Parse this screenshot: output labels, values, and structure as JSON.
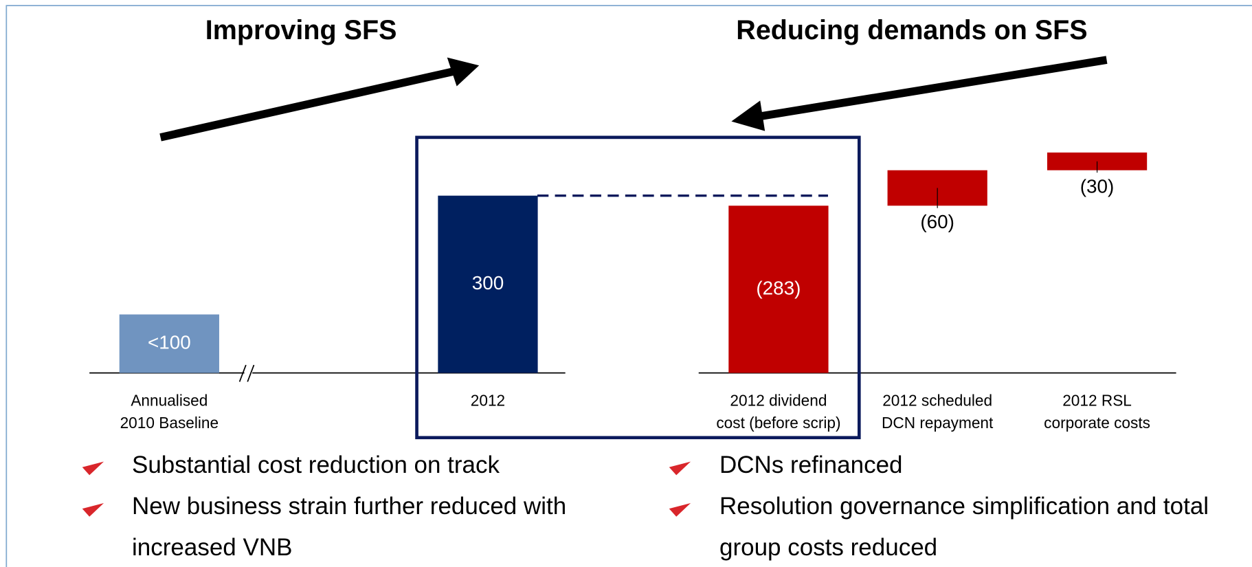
{
  "chart_data": {
    "type": "waterfall",
    "headings": [
      "Improving SFS",
      "Reducing demands on SFS"
    ],
    "categories": [
      [
        "Annualised",
        "2010 Baseline"
      ],
      [
        "2012"
      ],
      [
        "2012 dividend",
        "cost (before scrip)"
      ],
      [
        "2012 scheduled",
        "DCN repayment"
      ],
      [
        "2012 RSL",
        "corporate costs"
      ]
    ],
    "values": [
      99,
      300,
      283,
      60,
      30
    ],
    "value_labels": [
      "<100",
      "300",
      "(283)",
      "(60)",
      "(30)"
    ],
    "colors": [
      "#7094c0",
      "#002060",
      "#c00000",
      "#c00000",
      "#c00000"
    ]
  },
  "bullets": {
    "left": [
      "Substantial cost reduction on track",
      "New business strain further reduced with increased VNB"
    ],
    "right": [
      "DCNs refinanced",
      "Resolution governance simplification and total group costs reduced"
    ]
  }
}
